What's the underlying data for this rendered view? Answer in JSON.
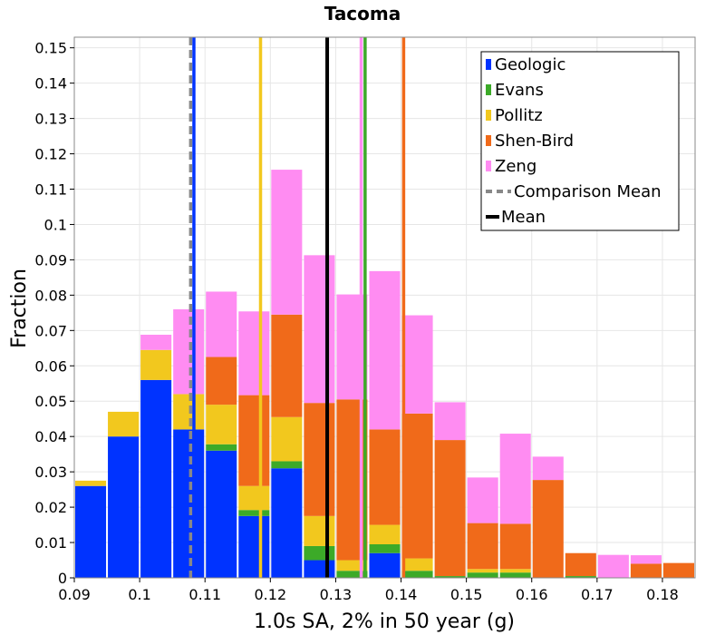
{
  "chart_data": {
    "type": "bar",
    "stacked": true,
    "title": "Tacoma",
    "xlabel": "1.0s SA, 2% in 50 year (g)",
    "ylabel": "Fraction",
    "xlim": [
      0.09,
      0.185
    ],
    "ylim": [
      0,
      0.153
    ],
    "grid": true,
    "legend_position": "top-right",
    "bin_width": 0.005,
    "x_ticks": [
      "0.09",
      "0.1",
      "0.11",
      "0.12",
      "0.13",
      "0.14",
      "0.15",
      "0.16",
      "0.17",
      "0.18"
    ],
    "x_tick_values": [
      0.09,
      0.1,
      0.11,
      0.12,
      0.13,
      0.14,
      0.15,
      0.16,
      0.17,
      0.18
    ],
    "y_ticks": [
      "0",
      "0.01",
      "0.02",
      "0.03",
      "0.04",
      "0.05",
      "0.06",
      "0.07",
      "0.08",
      "0.09",
      "0.1",
      "0.11",
      "0.12",
      "0.13",
      "0.14",
      "0.15"
    ],
    "y_tick_values": [
      0,
      0.01,
      0.02,
      0.03,
      0.04,
      0.05,
      0.06,
      0.07,
      0.08,
      0.09,
      0.1,
      0.11,
      0.12,
      0.13,
      0.14,
      0.15
    ],
    "bin_starts": [
      0.09,
      0.095,
      0.1,
      0.105,
      0.11,
      0.115,
      0.12,
      0.125,
      0.13,
      0.135,
      0.14,
      0.145,
      0.15,
      0.155,
      0.16,
      0.165,
      0.17,
      0.175,
      0.18
    ],
    "series": [
      {
        "name": "Geologic",
        "color": "#0033ff",
        "values": [
          0.026,
          0.04,
          0.056,
          0.042,
          0.036,
          0.0175,
          0.031,
          0.005,
          0,
          0.007,
          0,
          0,
          0,
          0,
          0,
          0,
          0,
          0,
          0
        ]
      },
      {
        "name": "Evans",
        "color": "#3caa28",
        "values": [
          0,
          0,
          0,
          0,
          0.0018,
          0.0017,
          0.002,
          0.004,
          0.002,
          0.0025,
          0.002,
          0.0005,
          0.0015,
          0.0015,
          0,
          0.0005,
          0,
          0,
          0
        ]
      },
      {
        "name": "Pollitz",
        "color": "#f2c81e",
        "values": [
          0.0015,
          0.007,
          0.0085,
          0.01,
          0.0112,
          0.0068,
          0.0125,
          0.0085,
          0.003,
          0.0055,
          0.0035,
          0,
          0.001,
          0.001,
          0,
          0,
          0,
          0,
          0
        ]
      },
      {
        "name": "Shen-Bird",
        "color": "#f06a1a",
        "values": [
          0,
          0,
          0,
          0,
          0.0135,
          0.0257,
          0.029,
          0.032,
          0.0455,
          0.027,
          0.041,
          0.0385,
          0.013,
          0.0128,
          0.0277,
          0.0065,
          0,
          0.004,
          0.0042
        ]
      },
      {
        "name": "Zeng",
        "color": "#ff8cf2",
        "values": [
          0,
          0,
          0.0043,
          0.024,
          0.0185,
          0.0237,
          0.041,
          0.0418,
          0.0297,
          0.0448,
          0.0278,
          0.0107,
          0.0129,
          0.0255,
          0.0066,
          0,
          0.0065,
          0.0024,
          0
        ]
      }
    ],
    "vertical_lines": [
      {
        "name": "Geologic",
        "x": 0.1083,
        "color": "#0033ff",
        "style": "solid"
      },
      {
        "name": "Pollitz",
        "x": 0.1185,
        "color": "#f2c81e",
        "style": "solid"
      },
      {
        "name": "Zeng",
        "x": 0.1339,
        "color": "#ff8cf2",
        "style": "solid"
      },
      {
        "name": "Evans",
        "x": 0.1345,
        "color": "#3caa28",
        "style": "solid"
      },
      {
        "name": "Shen-Bird",
        "x": 0.1404,
        "color": "#f06a1a",
        "style": "solid"
      },
      {
        "name": "Comparison Mean",
        "x": 0.1078,
        "color": "#888888",
        "style": "dashed"
      },
      {
        "name": "Mean",
        "x": 0.1287,
        "color": "#000000",
        "style": "solid"
      }
    ],
    "legend": [
      {
        "label": "Geologic",
        "color": "#0033ff",
        "kind": "bar"
      },
      {
        "label": "Evans",
        "color": "#3caa28",
        "kind": "bar"
      },
      {
        "label": "Pollitz",
        "color": "#f2c81e",
        "kind": "bar"
      },
      {
        "label": "Shen-Bird",
        "color": "#f06a1a",
        "kind": "bar"
      },
      {
        "label": "Zeng",
        "color": "#ff8cf2",
        "kind": "bar"
      },
      {
        "label": "Comparison Mean",
        "color": "#888888",
        "kind": "dashed-line"
      },
      {
        "label": "Mean",
        "color": "#000000",
        "kind": "line"
      }
    ]
  }
}
